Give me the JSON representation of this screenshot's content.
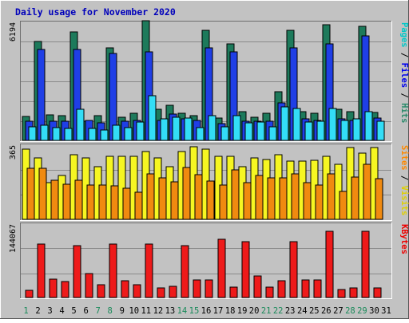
{
  "chart_data": {
    "type": "bar",
    "title": "Daily usage for November 2020",
    "categories": [
      "1",
      "2",
      "3",
      "4",
      "5",
      "6",
      "7",
      "8",
      "9",
      "10",
      "11",
      "12",
      "13",
      "14",
      "15",
      "16",
      "17",
      "18",
      "19",
      "20",
      "21",
      "22",
      "23",
      "24",
      "25",
      "26",
      "27",
      "28",
      "29",
      "30",
      "31"
    ],
    "weekend_days": [
      "1",
      "7",
      "8",
      "14",
      "15",
      "21",
      "22",
      "28",
      "29"
    ],
    "panels": [
      {
        "id": "hits-files-pages",
        "max_label": "6194",
        "ylim": [
          0,
          6194
        ],
        "side_label": [
          "Pages",
          "Files",
          "Hits"
        ],
        "series": [
          {
            "name": "Hits",
            "color": "#1d7a5b",
            "values": [
              1250,
              5100,
              1320,
              1300,
              5600,
              1000,
              1280,
              4800,
              1200,
              1400,
              6194,
              1600,
              1800,
              1400,
              1300,
              5700,
              1150,
              5000,
              1500,
              1200,
              1400,
              2500,
              5700,
              1500,
              1400,
              6000,
              1600,
              1500,
              5900,
              1450,
              0
            ]
          },
          {
            "name": "Files",
            "color": "#1f3fe6",
            "values": [
              1000,
              4700,
              1000,
              980,
              4700,
              1050,
              900,
              4500,
              980,
              1050,
              4600,
              1050,
              1350,
              1100,
              1050,
              4800,
              850,
              4600,
              1000,
              1000,
              1000,
              1950,
              4800,
              1100,
              1050,
              5000,
              1100,
              1050,
              5400,
              1150,
              0
            ]
          },
          {
            "name": "Pages",
            "color": "#33ddf6",
            "values": [
              700,
              800,
              650,
              600,
              1600,
              600,
              550,
              800,
              650,
              950,
              2300,
              1100,
              1200,
              1150,
              650,
              1300,
              700,
              1300,
              900,
              950,
              700,
              1750,
              1650,
              950,
              1000,
              1650,
              1050,
              1100,
              1500,
              1000,
              0
            ]
          }
        ]
      },
      {
        "id": "visits-sites",
        "max_label": "365",
        "ylim": [
          0,
          365
        ],
        "side_label": [
          "Sites",
          "Visits"
        ],
        "series": [
          {
            "name": "Visits",
            "color": "#f6f622",
            "values": [
              340,
              295,
              175,
              210,
              310,
              295,
              255,
              305,
              305,
              305,
              325,
              295,
              255,
              325,
              350,
              340,
              305,
              305,
              255,
              295,
              290,
              310,
              280,
              280,
              285,
              305,
              265,
              345,
              320,
              345,
              0
            ]
          },
          {
            "name": "Sites",
            "color": "#f08a10",
            "values": [
              245,
              245,
              190,
              170,
              190,
              165,
              165,
              160,
              150,
              130,
              220,
              200,
              180,
              250,
              215,
              185,
              165,
              240,
              175,
              210,
              200,
              200,
              220,
              175,
              165,
              220,
              135,
              205,
              265,
              195,
              0
            ]
          }
        ]
      },
      {
        "id": "kbytes",
        "max_label": "144067",
        "ylim": [
          0,
          144067
        ],
        "side_label": [
          "KBytes"
        ],
        "series": [
          {
            "name": "KBytes",
            "color": "#ee1a1a",
            "values": [
              14000,
              102000,
              36000,
              30000,
              100000,
              46000,
              25000,
              102000,
              32000,
              25000,
              103000,
              19000,
              22000,
              100000,
              34000,
              34000,
              112000,
              20000,
              108000,
              42000,
              20000,
              32000,
              108000,
              33000,
              33000,
              127000,
              16000,
              19000,
              127000,
              19000,
              0
            ]
          }
        ]
      }
    ]
  }
}
